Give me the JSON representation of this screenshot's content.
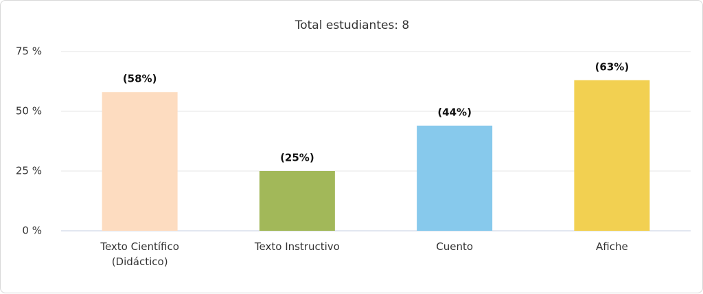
{
  "chart_data": {
    "type": "bar",
    "title": "Total estudiantes: 8",
    "categories": [
      "Texto Científico (Didáctico)",
      "Texto Instructivo",
      "Cuento",
      "Afiche"
    ],
    "values": [
      58,
      25,
      44,
      63
    ],
    "value_labels": [
      "(58%)",
      "(25%)",
      "(44%)",
      "(63%)"
    ],
    "colors": [
      "#fddcc0",
      "#a2b859",
      "#87c9ec",
      "#f2d051"
    ],
    "ylim": [
      0,
      75
    ],
    "yticks": [
      {
        "value": 0,
        "label": "0 %"
      },
      {
        "value": 25,
        "label": "25 %"
      },
      {
        "value": 50,
        "label": "50 %"
      },
      {
        "value": 75,
        "label": "75 %"
      }
    ],
    "grid": true
  }
}
